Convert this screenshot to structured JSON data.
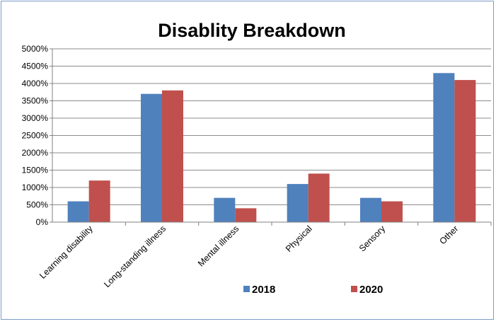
{
  "chart_data": {
    "type": "bar",
    "title": "Disablity  Breakdown",
    "categories": [
      "Learning disability",
      "Long-standing illness",
      "Mental illness",
      "Physical",
      "Sensory",
      "Other"
    ],
    "series": [
      {
        "name": "2018",
        "color": "#4f81bd",
        "values": [
          600,
          3700,
          700,
          1100,
          700,
          4300
        ]
      },
      {
        "name": "2020",
        "color": "#c0504d",
        "values": [
          1200,
          3800,
          400,
          1400,
          600,
          4100
        ]
      }
    ],
    "ylim": [
      0,
      5000
    ],
    "yticks": [
      "0%",
      "500%",
      "1000%",
      "1500%",
      "2000%",
      "2500%",
      "3000%",
      "3500%",
      "4000%",
      "4500%",
      "5000%"
    ],
    "xlabel": "",
    "ylabel": "",
    "grid": true,
    "legend": "bottom"
  }
}
